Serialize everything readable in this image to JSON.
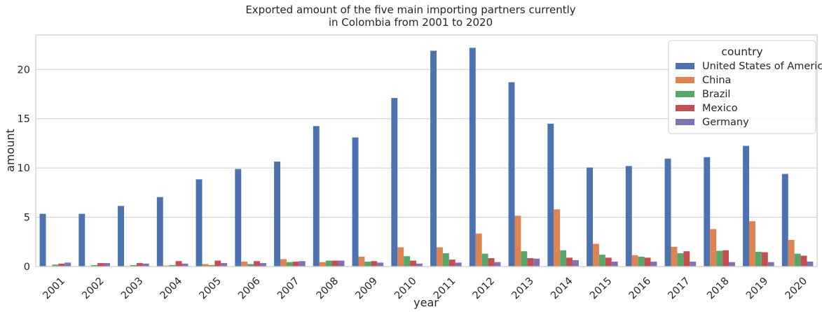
{
  "chart_data": {
    "type": "bar",
    "title_lines": [
      "Exported amount of the five main importing partners currently",
      "in Colombia from 2001 to 2020"
    ],
    "xlabel": "year",
    "ylabel": "amount",
    "ylim": [
      0,
      23.5
    ],
    "yticks": [
      0,
      5,
      10,
      15,
      20
    ],
    "grid": true,
    "legend": {
      "title": "country",
      "position": "top-right"
    },
    "categories": [
      "2001",
      "2002",
      "2003",
      "2004",
      "2005",
      "2006",
      "2007",
      "2008",
      "2009",
      "2010",
      "2011",
      "2012",
      "2013",
      "2014",
      "2015",
      "2016",
      "2017",
      "2018",
      "2019",
      "2020"
    ],
    "series": [
      {
        "name": "United States of America",
        "color": "#4c72b0",
        "values": [
          5.35,
          5.35,
          6.15,
          7.05,
          8.85,
          9.9,
          10.65,
          14.25,
          13.1,
          17.1,
          21.9,
          22.2,
          18.7,
          14.5,
          10.05,
          10.2,
          10.95,
          11.1,
          12.25,
          9.4
        ]
      },
      {
        "name": "China",
        "color": "#dd8452",
        "values": [
          0.05,
          0.05,
          0.05,
          0.1,
          0.25,
          0.5,
          0.75,
          0.45,
          1.0,
          1.95,
          1.95,
          3.35,
          5.15,
          5.8,
          2.3,
          1.15,
          2.0,
          3.8,
          4.6,
          2.7
        ]
      },
      {
        "name": "Brazil",
        "color": "#55a868",
        "values": [
          0.2,
          0.15,
          0.15,
          0.15,
          0.15,
          0.25,
          0.45,
          0.6,
          0.5,
          1.05,
          1.35,
          1.3,
          1.55,
          1.65,
          1.2,
          1.0,
          1.35,
          1.6,
          1.5,
          1.3
        ]
      },
      {
        "name": "Mexico",
        "color": "#c44e52",
        "values": [
          0.3,
          0.35,
          0.35,
          0.55,
          0.6,
          0.55,
          0.5,
          0.6,
          0.55,
          0.6,
          0.7,
          0.85,
          0.85,
          0.9,
          0.9,
          0.9,
          1.55,
          1.65,
          1.45,
          1.1
        ]
      },
      {
        "name": "Germany",
        "color": "#8172b3",
        "values": [
          0.4,
          0.35,
          0.3,
          0.3,
          0.35,
          0.35,
          0.55,
          0.6,
          0.4,
          0.3,
          0.4,
          0.45,
          0.8,
          0.65,
          0.5,
          0.5,
          0.5,
          0.45,
          0.45,
          0.5
        ]
      }
    ]
  }
}
